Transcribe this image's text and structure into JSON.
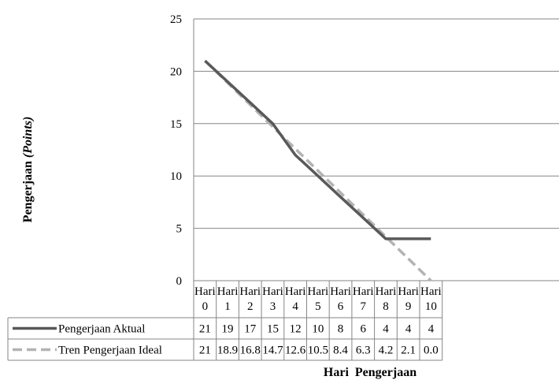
{
  "chart_data": {
    "type": "line",
    "categories": [
      [
        "Hari",
        "0"
      ],
      [
        "Hari",
        "1"
      ],
      [
        "Hari",
        "2"
      ],
      [
        "Hari",
        "3"
      ],
      [
        "Hari",
        "4"
      ],
      [
        "Hari",
        "5"
      ],
      [
        "Hari",
        "6"
      ],
      [
        "Hari",
        "7"
      ],
      [
        "Hari",
        "8"
      ],
      [
        "Hari",
        "9"
      ],
      [
        "Hari",
        "10"
      ]
    ],
    "series": [
      {
        "name": "Pengerjaan Aktual",
        "values": [
          21,
          19,
          17,
          15,
          12,
          10,
          8,
          6,
          4,
          4,
          4
        ],
        "labels": [
          "21",
          "19",
          "17",
          "15",
          "12",
          "10",
          "8",
          "6",
          "4",
          "4",
          "4"
        ],
        "color": "#595959",
        "dash": "solid"
      },
      {
        "name": "Tren Pengerjaan Ideal",
        "values": [
          21,
          18.9,
          16.8,
          14.7,
          12.6,
          10.5,
          8.4,
          6.3,
          4.2,
          2.1,
          0.0
        ],
        "labels": [
          "21",
          "18.9",
          "16.8",
          "14.7",
          "12.6",
          "10.5",
          "8.4",
          "6.3",
          "4.2",
          "2.1",
          "0.0"
        ],
        "color": "#b3b3b3",
        "dash": "dashed"
      }
    ],
    "yticks": [
      "0",
      "5",
      "10",
      "15",
      "20",
      "25"
    ],
    "ylim": [
      0,
      25
    ],
    "ylabel": "Pengerjaan",
    "ylabel_italic": "(Points)",
    "xlabel": "Hari  Pengerjaan",
    "grid": true,
    "legend": "data-table"
  }
}
